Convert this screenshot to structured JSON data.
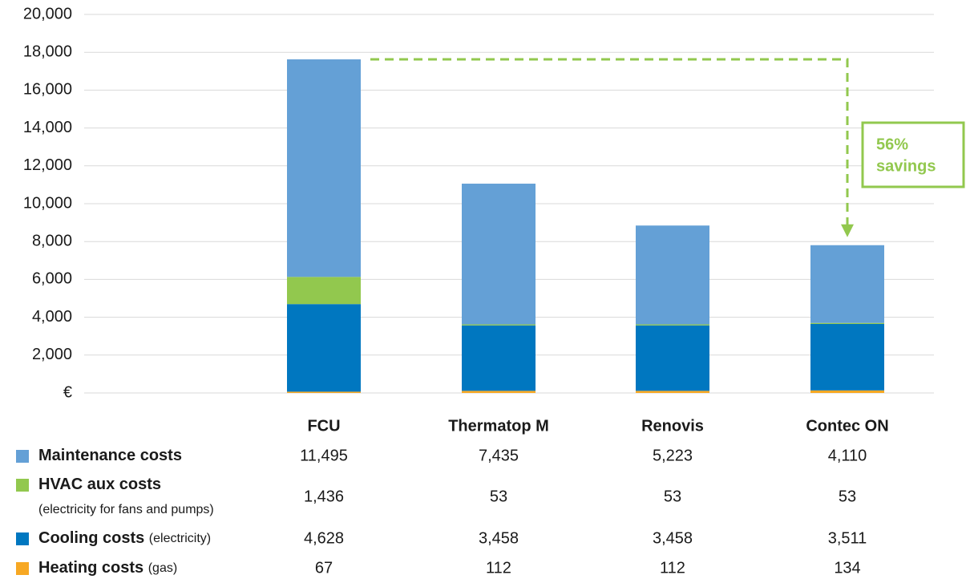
{
  "chart_data": {
    "type": "stacked-bar",
    "categories": [
      "FCU",
      "Thermatop M",
      "Renovis",
      "Contec ON"
    ],
    "series": [
      {
        "name": "Heating costs",
        "name_detail": "(gas)",
        "color": "#f7a823",
        "values": [
          67,
          112,
          112,
          134
        ],
        "value_labels": [
          "67",
          "112",
          "112",
          "134"
        ]
      },
      {
        "name": "Cooling costs",
        "name_detail": "(electricity)",
        "color": "#0077c0",
        "values": [
          4628,
          3458,
          3458,
          3511
        ],
        "value_labels": [
          "4,628",
          "3,458",
          "3,458",
          "3,511"
        ]
      },
      {
        "name": "HVAC aux costs",
        "name_detail": "(electricity for fans and pumps)",
        "color": "#92c84e",
        "values": [
          1436,
          53,
          53,
          53
        ],
        "value_labels": [
          "1,436",
          "53",
          "53",
          "53"
        ]
      },
      {
        "name": "Maintenance costs",
        "color": "#64a0d6",
        "values": [
          11495,
          7435,
          5223,
          4110
        ],
        "value_labels": [
          "11,495",
          "7,435",
          "5,223",
          "4,110"
        ]
      }
    ],
    "ylim": [
      0,
      20000
    ],
    "yticks": [
      {
        "value": 0,
        "label": "€"
      },
      {
        "value": 2000,
        "label": "2,000"
      },
      {
        "value": 4000,
        "label": "4,000"
      },
      {
        "value": 6000,
        "label": "6,000"
      },
      {
        "value": 8000,
        "label": "8,000"
      },
      {
        "value": 10000,
        "label": "10,000"
      },
      {
        "value": 12000,
        "label": "12,000"
      },
      {
        "value": 14000,
        "label": "14,000"
      },
      {
        "value": 16000,
        "label": "16,000"
      },
      {
        "value": 18000,
        "label": "18,000"
      },
      {
        "value": 20000,
        "label": "20,000"
      }
    ],
    "grid": true,
    "annotation": {
      "lines": [
        "56%",
        "savings"
      ],
      "color": "#92c84e"
    }
  }
}
